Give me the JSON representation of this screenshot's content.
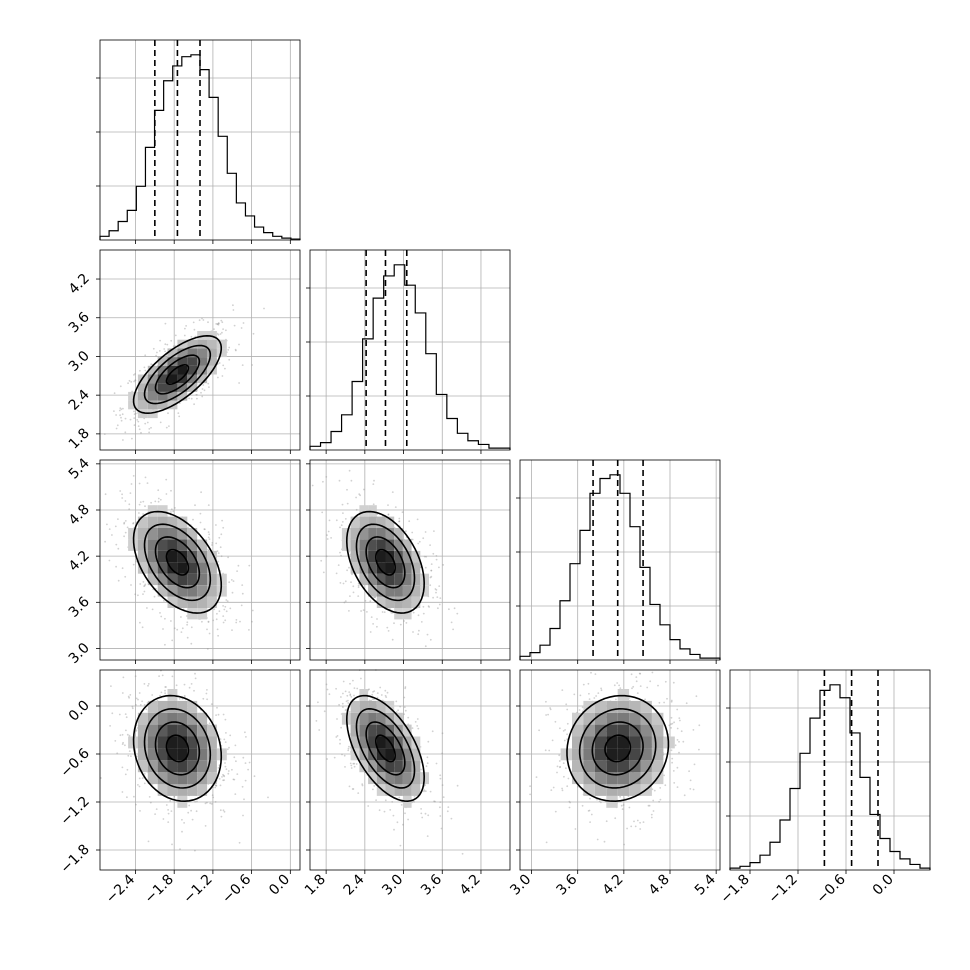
{
  "chart_data": {
    "type": "corner",
    "parameters": [
      {
        "index": 0,
        "mean": -1.75,
        "sd": 0.34,
        "range": [
          -2.95,
          0.15
        ],
        "ticks": [
          -2.4,
          -1.8,
          -1.2,
          -0.6,
          0.0
        ],
        "tick_labels": [
          "−2.4",
          "−1.8",
          "−1.2",
          "−0.6",
          "0.0"
        ],
        "quantiles": [
          -2.1,
          -1.75,
          -1.4
        ],
        "hist_counts": [
          0.02,
          0.05,
          0.1,
          0.16,
          0.29,
          0.5,
          0.7,
          0.86,
          0.94,
          0.99,
          1.0,
          0.92,
          0.77,
          0.56,
          0.36,
          0.2,
          0.13,
          0.07,
          0.04,
          0.02,
          0.01,
          0.005
        ]
      },
      {
        "index": 1,
        "mean": 2.72,
        "sd": 0.3,
        "range": [
          1.55,
          4.65
        ],
        "ticks": [
          1.8,
          2.4,
          3.0,
          3.6,
          4.2
        ],
        "tick_labels": [
          "1.8",
          "2.4",
          "3.0",
          "3.6",
          "4.2"
        ],
        "quantiles": [
          2.42,
          2.72,
          3.05
        ],
        "hist_counts": [
          0.02,
          0.04,
          0.1,
          0.19,
          0.37,
          0.6,
          0.82,
          0.94,
          1.0,
          0.89,
          0.74,
          0.52,
          0.3,
          0.17,
          0.09,
          0.05,
          0.03,
          0.01,
          0.01
        ]
      },
      {
        "index": 2,
        "mean": 4.12,
        "sd": 0.33,
        "range": [
          2.85,
          5.45
        ],
        "ticks": [
          3.0,
          3.6,
          4.2,
          4.8,
          5.4
        ],
        "tick_labels": [
          "3.0",
          "3.6",
          "4.2",
          "4.8",
          "5.4"
        ],
        "quantiles": [
          3.8,
          4.12,
          4.45
        ],
        "hist_counts": [
          0.02,
          0.04,
          0.08,
          0.17,
          0.32,
          0.52,
          0.7,
          0.9,
          0.98,
          1.0,
          0.9,
          0.72,
          0.5,
          0.3,
          0.19,
          0.11,
          0.06,
          0.03,
          0.01,
          0.01
        ]
      },
      {
        "index": 3,
        "mean": -0.53,
        "sd": 0.33,
        "range": [
          -2.05,
          0.45
        ],
        "ticks": [
          -1.8,
          -1.2,
          -0.6,
          0.0
        ],
        "tick_labels": [
          "−1.8",
          "−1.2",
          "−0.6",
          "0.0"
        ],
        "quantiles": [
          -0.87,
          -0.53,
          -0.2
        ],
        "hist_counts": [
          0.01,
          0.02,
          0.04,
          0.08,
          0.15,
          0.27,
          0.44,
          0.63,
          0.82,
          0.97,
          1.0,
          0.93,
          0.74,
          0.5,
          0.3,
          0.17,
          0.1,
          0.06,
          0.03,
          0.01
        ]
      }
    ],
    "correlations": {
      "1-0": 0.68,
      "2-0": -0.45,
      "2-1": -0.42,
      "3-0": -0.15,
      "3-1": -0.55,
      "3-2": 0.08
    },
    "contour_levels_sigma": [
      0.5,
      1.0,
      1.5,
      2.0
    ],
    "grid": true
  }
}
